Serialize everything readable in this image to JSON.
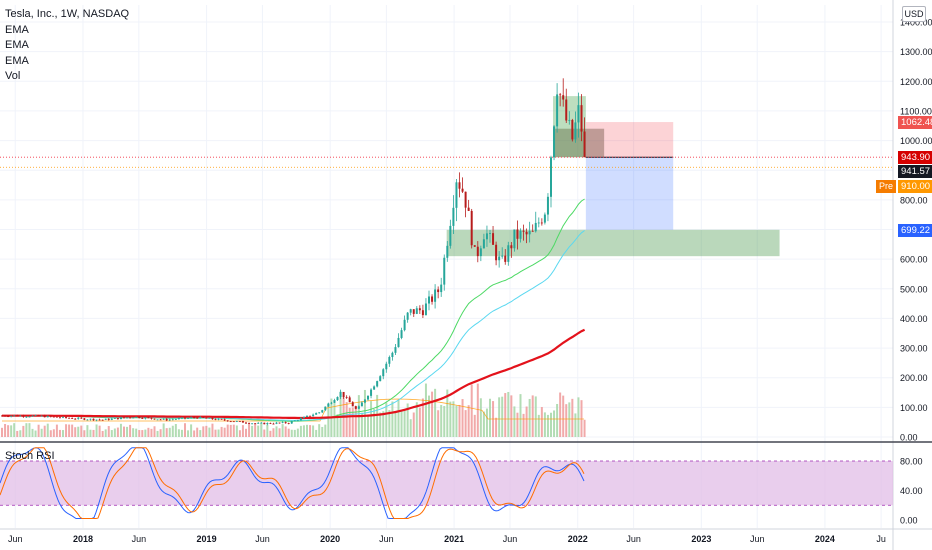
{
  "header": {
    "symbol": "Tesla, Inc., 1W, NASDAQ",
    "indicators": [
      "EMA",
      "EMA",
      "EMA",
      "Vol"
    ],
    "currency": "USD",
    "rsi_label": "Stoch RSI"
  },
  "colors": {
    "up": "#26a69a",
    "down": "#b71c1c",
    "ema_fast": "#4cd964",
    "ema_mid": "#5ad8f0",
    "ema_slow": "#e3121b",
    "volume_up": "#a5d6a7",
    "volume_down": "#ef9a9a",
    "rsi_band": "#e1bee7",
    "stoch_k": "#2962ff",
    "stoch_d": "#ff6d00"
  },
  "price_badges": {
    "stop": "1062.48",
    "last": "943.90",
    "close": "941.57",
    "pre_label": "Pre",
    "pre_value": "910.00",
    "target": "699.22"
  },
  "chart_data": [
    {
      "type": "candlestick",
      "title": "Tesla, Inc., 1W, NASDAQ",
      "y_axis_ticks": [
        "1400.00",
        "1300.00",
        "1200.00",
        "1100.00",
        "1000.00",
        "900.00",
        "800.00",
        "700.00",
        "600.00",
        "500.00",
        "400.00",
        "300.00",
        "200.00",
        "100.00",
        "0.00"
      ],
      "x_axis_ticks": [
        "Jun",
        "2018",
        "Jun",
        "2019",
        "Jun",
        "2020",
        "Jun",
        "2021",
        "Jun",
        "2022",
        "Jun",
        "2023",
        "Jun",
        "2024",
        "Ju"
      ],
      "ylim": [
        0,
        1450
      ],
      "xlim": [
        "2017-05",
        "2024-07"
      ],
      "series_close": [
        [
          "2017-06-01",
          72
        ],
        [
          "2017-09-01",
          70
        ],
        [
          "2017-12-01",
          63
        ],
        [
          "2018-03-01",
          58
        ],
        [
          "2018-06-01",
          68
        ],
        [
          "2018-09-01",
          58
        ],
        [
          "2018-12-01",
          66
        ],
        [
          "2019-03-01",
          56
        ],
        [
          "2019-06-01",
          45
        ],
        [
          "2019-09-01",
          48
        ],
        [
          "2019-12-01",
          84
        ],
        [
          "2020-02-01",
          150
        ],
        [
          "2020-03-20",
          90
        ],
        [
          "2020-05-01",
          160
        ],
        [
          "2020-07-01",
          280
        ],
        [
          "2020-08-20",
          420
        ],
        [
          "2020-10-01",
          430
        ],
        [
          "2020-11-20",
          500
        ],
        [
          "2021-01-08",
          880
        ],
        [
          "2021-02-01",
          820
        ],
        [
          "2021-03-05",
          600
        ],
        [
          "2021-04-01",
          700
        ],
        [
          "2021-05-20",
          580
        ],
        [
          "2021-07-01",
          680
        ],
        [
          "2021-08-20",
          680
        ],
        [
          "2021-10-01",
          780
        ],
        [
          "2021-11-01",
          1200
        ],
        [
          "2021-11-20",
          1100
        ],
        [
          "2021-12-15",
          1000
        ],
        [
          "2022-01-05",
          1100
        ],
        [
          "2022-01-25",
          943.9
        ]
      ],
      "ema_fast_end": 800,
      "ema_mid_end": 699,
      "ema_slow_end": 440,
      "last_price": 943.9,
      "close_price": 941.57,
      "premarket_price": 910.0,
      "position": {
        "entry": 943.9,
        "stop": 1062.48,
        "target": 699.22
      },
      "demand_zone": [
        610,
        699
      ]
    },
    {
      "type": "line",
      "title": "Stoch RSI",
      "y_axis_ticks": [
        "80.00",
        "40.00",
        "0.00"
      ],
      "ylim": [
        0,
        100
      ],
      "band": [
        20,
        80
      ]
    }
  ]
}
